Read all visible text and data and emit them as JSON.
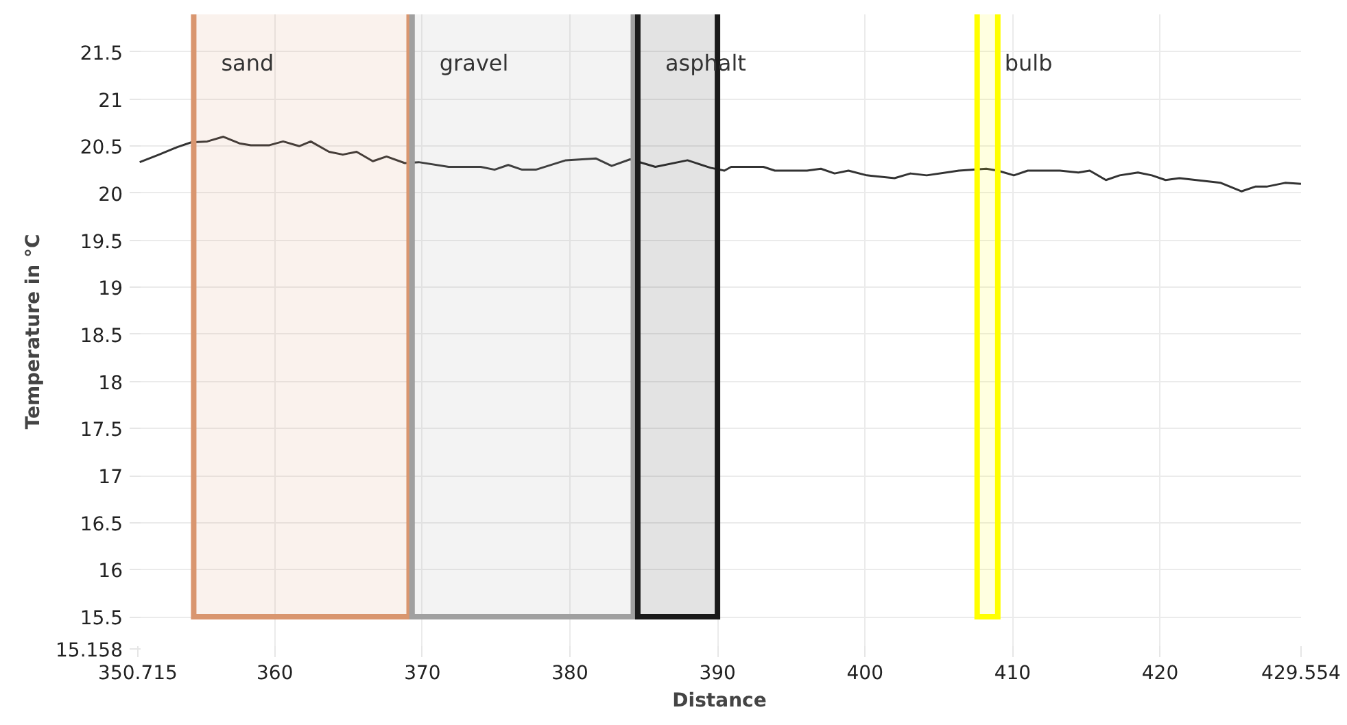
{
  "chart_data": {
    "type": "line",
    "xlabel": "Distance",
    "ylabel": "Temperature in °C",
    "xlim": [
      350.715,
      429.554
    ],
    "xticks": [
      350.715,
      360,
      370,
      380,
      390,
      400,
      410,
      420,
      429.554
    ],
    "ylim": [
      15.158,
      21.9
    ],
    "yticks": [
      15.158,
      15.5,
      16,
      16.5,
      17,
      17.5,
      18,
      18.5,
      19,
      19.5,
      20,
      20.5,
      21,
      21.5
    ],
    "grid": true,
    "marker": "none",
    "line_style": "solid",
    "series": [
      {
        "color": "#333333",
        "x": [
          350.84,
          352.15,
          353.39,
          354.33,
          355.42,
          356.51,
          357.6,
          358.38,
          359.63,
          360.56,
          361.65,
          362.43,
          363.67,
          364.61,
          365.54,
          366.64,
          367.57,
          368.81,
          369.75,
          371.78,
          373.95,
          374.89,
          375.82,
          376.76,
          377.69,
          379.72,
          381.75,
          382.83,
          384.08,
          385.79,
          387.97,
          389.53,
          390.47,
          390.93,
          393.11,
          393.89,
          396.07,
          397.01,
          397.94,
          398.88,
          400.12,
          402.0,
          403.08,
          404.18,
          406.36,
          408.22,
          409.0,
          410.09,
          411.03,
          413.21,
          414.46,
          415.23,
          416.33,
          417.26,
          418.5,
          419.44,
          420.37,
          421.31,
          424.11,
          425.51,
          426.45,
          427.22,
          428.47,
          429.55
        ],
        "values": [
          20.33,
          20.41,
          20.49,
          20.54,
          20.55,
          20.6,
          20.53,
          20.51,
          20.51,
          20.55,
          20.5,
          20.55,
          20.44,
          20.41,
          20.44,
          20.34,
          20.39,
          20.32,
          20.33,
          20.28,
          20.28,
          20.25,
          20.3,
          20.25,
          20.25,
          20.35,
          20.37,
          20.29,
          20.36,
          20.28,
          20.35,
          20.27,
          20.24,
          20.28,
          20.28,
          20.24,
          20.24,
          20.26,
          20.21,
          20.24,
          20.19,
          20.16,
          20.21,
          20.19,
          20.24,
          20.26,
          20.24,
          20.19,
          20.24,
          20.24,
          20.22,
          20.24,
          20.14,
          20.19,
          20.22,
          20.19,
          20.14,
          20.16,
          20.11,
          20.02,
          20.07,
          20.07,
          20.11,
          20.1
        ]
      }
    ],
    "bands": [
      {
        "axis": "x",
        "from": 354.5,
        "to": 369.1,
        "label": "sand",
        "color": "#d9966f"
      },
      {
        "axis": "x",
        "from": 369.3,
        "to": 384.3,
        "label": "gravel",
        "color": "#a0a0a0"
      },
      {
        "axis": "x",
        "from": 384.6,
        "to": 390.0,
        "label": "asphalt",
        "color": "#1a1a1a"
      },
      {
        "axis": "x",
        "from": 407.6,
        "to": 409.0,
        "label": "bulb",
        "color": "#ffff00"
      }
    ]
  }
}
